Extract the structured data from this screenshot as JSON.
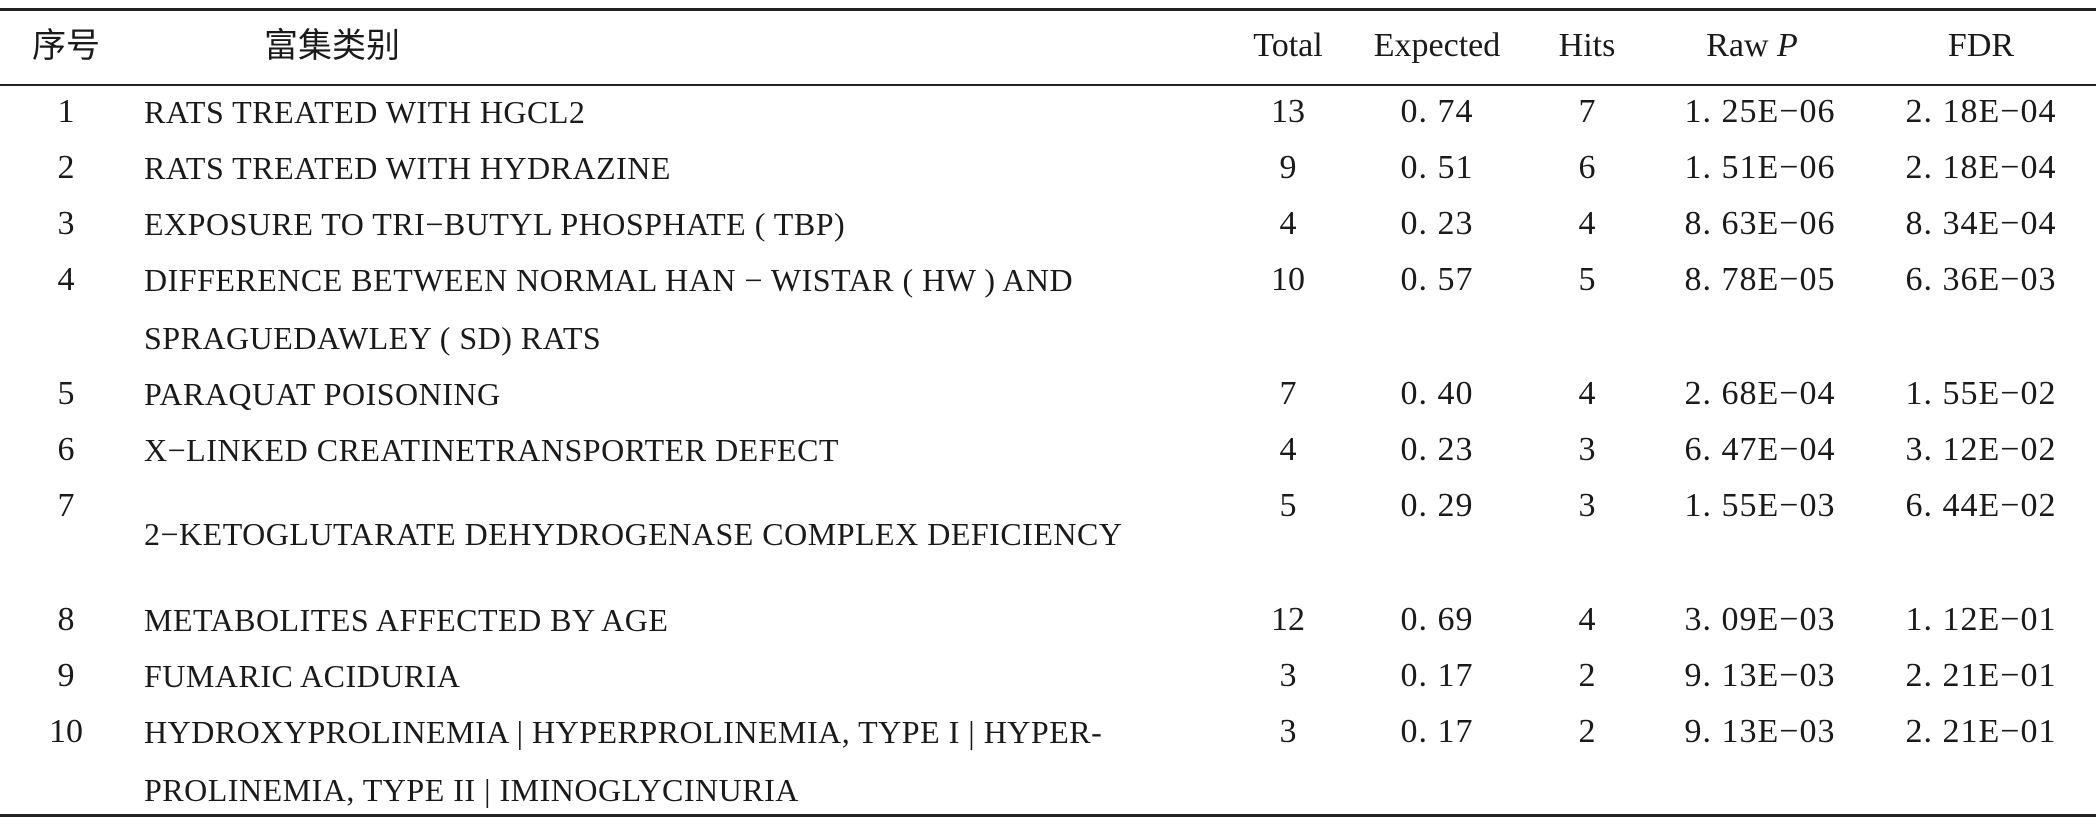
{
  "table": {
    "headers": {
      "index": "序号",
      "category": "富集类别",
      "total": "Total",
      "expected": "Expected",
      "hits": "Hits",
      "raw_p_prefix": "Raw",
      "raw_p_italic": "P",
      "fdr": "FDR"
    },
    "rows": [
      {
        "index": "1",
        "category_lines": [
          "RATS TREATED WITH HGCL2"
        ],
        "total": "13",
        "expected": "0. 74",
        "hits": "7",
        "raw_p": "1. 25E−06",
        "fdr": "2. 18E−04"
      },
      {
        "index": "2",
        "category_lines": [
          "RATS TREATED WITH HYDRAZINE"
        ],
        "total": "9",
        "expected": "0. 51",
        "hits": "6",
        "raw_p": "1. 51E−06",
        "fdr": "2. 18E−04"
      },
      {
        "index": "3",
        "category_lines": [
          "EXPOSURE TO TRI−BUTYL PHOSPHATE ( TBP)"
        ],
        "total": "4",
        "expected": "0. 23",
        "hits": "4",
        "raw_p": "8. 63E−06",
        "fdr": "8. 34E−04"
      },
      {
        "index": "4",
        "category_lines": [
          "DIFFERENCE  BETWEEN  NORMAL  HAN − WISTAR  ( HW )  AND",
          "SPRAGUEDAWLEY ( SD) RATS"
        ],
        "total": "10",
        "expected": "0. 57",
        "hits": "5",
        "raw_p": "8. 78E−05",
        "fdr": "6. 36E−03"
      },
      {
        "index": "5",
        "category_lines": [
          "PARAQUAT POISONING"
        ],
        "total": "7",
        "expected": "0. 40",
        "hits": "4",
        "raw_p": "2. 68E−04",
        "fdr": "1. 55E−02"
      },
      {
        "index": "6",
        "category_lines": [
          "X−LINKED CREATINETRANSPORTER DEFECT"
        ],
        "total": "4",
        "expected": "0. 23",
        "hits": "3",
        "raw_p": "6. 47E−04",
        "fdr": "3. 12E−02"
      },
      {
        "index": "7",
        "category_lines": [
          "2−KETOGLUTARATE DEHYDROGENASE COMPLEX DEFICIENCY"
        ],
        "total": "5",
        "expected": "0. 29",
        "hits": "3",
        "raw_p": "1. 55E−03",
        "fdr": "6. 44E−02"
      },
      {
        "index": "8",
        "category_lines": [
          "METABOLITES AFFECTED BY AGE"
        ],
        "total": "12",
        "expected": "0. 69",
        "hits": "4",
        "raw_p": "3. 09E−03",
        "fdr": "1. 12E−01"
      },
      {
        "index": "9",
        "category_lines": [
          "FUMARIC ACIDURIA"
        ],
        "total": "3",
        "expected": "0. 17",
        "hits": "2",
        "raw_p": "9. 13E−03",
        "fdr": "2. 21E−01"
      },
      {
        "index": "10",
        "category_lines": [
          "HYDROXYPROLINEMIA | HYPERPROLINEMIA, TYPE I | HYPER-",
          "PROLINEMIA, TYPE II | IMINOGLYCINURIA"
        ],
        "total": "3",
        "expected": "0. 17",
        "hits": "2",
        "raw_p": "9. 13E−03",
        "fdr": "2. 21E−01"
      }
    ]
  }
}
